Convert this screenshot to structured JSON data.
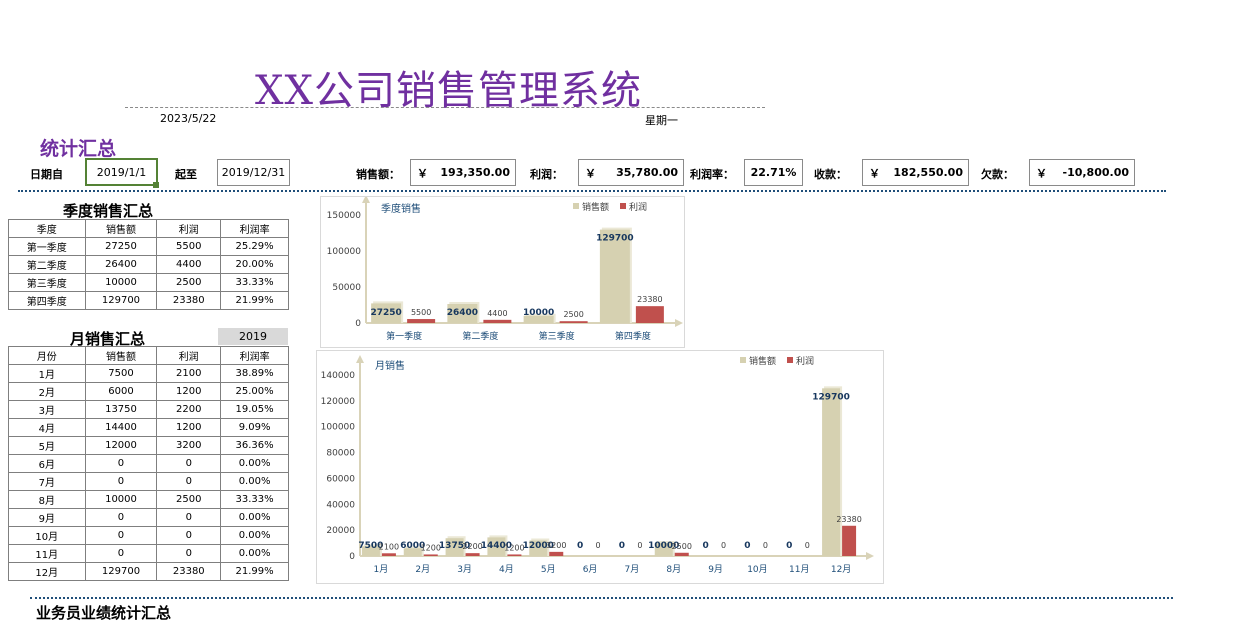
{
  "header": {
    "title": "XX公司销售管理系统",
    "date": "2023/5/22",
    "weekday": "星期一"
  },
  "summary": {
    "section_title": "统计汇总",
    "date_from_label": "日期自",
    "date_from": "2019/1/1",
    "date_to_label": "起至",
    "date_to": "2019/12/31",
    "sales_label": "销售额：",
    "sales_currency": "￥",
    "sales_value": "193,350.00",
    "profit_label": "利润：",
    "profit_currency": "￥",
    "profit_value": "35,780.00",
    "margin_label": "利润率：",
    "margin_value": "22.71%",
    "received_label": "收款：",
    "received_currency": "￥",
    "received_value": "182,550.00",
    "owed_label": "欠款：",
    "owed_currency": "￥",
    "owed_value": "-10,800.00"
  },
  "quarter_table": {
    "title": "季度销售汇总",
    "headers": [
      "季度",
      "销售额",
      "利润",
      "利润率"
    ],
    "rows": [
      [
        "第一季度",
        "27250",
        "5500",
        "25.29%"
      ],
      [
        "第二季度",
        "26400",
        "4400",
        "20.00%"
      ],
      [
        "第三季度",
        "10000",
        "2500",
        "33.33%"
      ],
      [
        "第四季度",
        "129700",
        "23380",
        "21.99%"
      ]
    ]
  },
  "month_table": {
    "title": "月销售汇总",
    "year": "2019",
    "headers": [
      "月份",
      "销售额",
      "利润",
      "利润率"
    ],
    "rows": [
      [
        "1月",
        "7500",
        "2100",
        "38.89%"
      ],
      [
        "2月",
        "6000",
        "1200",
        "25.00%"
      ],
      [
        "3月",
        "13750",
        "2200",
        "19.05%"
      ],
      [
        "4月",
        "14400",
        "1200",
        "9.09%"
      ],
      [
        "5月",
        "12000",
        "3200",
        "36.36%"
      ],
      [
        "6月",
        "0",
        "0",
        "0.00%"
      ],
      [
        "7月",
        "0",
        "0",
        "0.00%"
      ],
      [
        "8月",
        "10000",
        "2500",
        "33.33%"
      ],
      [
        "9月",
        "0",
        "0",
        "0.00%"
      ],
      [
        "10月",
        "0",
        "0",
        "0.00%"
      ],
      [
        "11月",
        "0",
        "0",
        "0.00%"
      ],
      [
        "12月",
        "129700",
        "23380",
        "21.99%"
      ]
    ]
  },
  "bottom_section_title": "业务员业绩统计汇总",
  "colors": {
    "accent_purple": "#7030a0",
    "sales_bar": "#d6d1b1",
    "profit_bar": "#c0504d",
    "separator": "#1f4e79"
  },
  "chart_data": [
    {
      "type": "bar",
      "title": "季度销售",
      "categories": [
        "第一季度",
        "第二季度",
        "第三季度",
        "第四季度"
      ],
      "series": [
        {
          "name": "销售额",
          "values": [
            27250,
            26400,
            10000,
            129700
          ]
        },
        {
          "name": "利润",
          "values": [
            5500,
            4400,
            2500,
            23380
          ]
        }
      ],
      "ylim": [
        0,
        150000
      ],
      "yticks": [
        0,
        50000,
        100000,
        150000
      ],
      "legend": "top-right",
      "grid": false
    },
    {
      "type": "bar",
      "title": "月销售",
      "categories": [
        "1月",
        "2月",
        "3月",
        "4月",
        "5月",
        "6月",
        "7月",
        "8月",
        "9月",
        "10月",
        "11月",
        "12月"
      ],
      "series": [
        {
          "name": "销售额",
          "values": [
            7500,
            6000,
            13750,
            14400,
            12000,
            0,
            0,
            10000,
            0,
            0,
            0,
            129700
          ]
        },
        {
          "name": "利润",
          "values": [
            2100,
            1200,
            2200,
            1200,
            3200,
            0,
            0,
            2500,
            0,
            0,
            0,
            23380
          ]
        }
      ],
      "ylim": [
        0,
        140000
      ],
      "yticks": [
        0,
        20000,
        40000,
        60000,
        80000,
        100000,
        120000,
        140000
      ],
      "legend": "top-right",
      "grid": false
    }
  ]
}
